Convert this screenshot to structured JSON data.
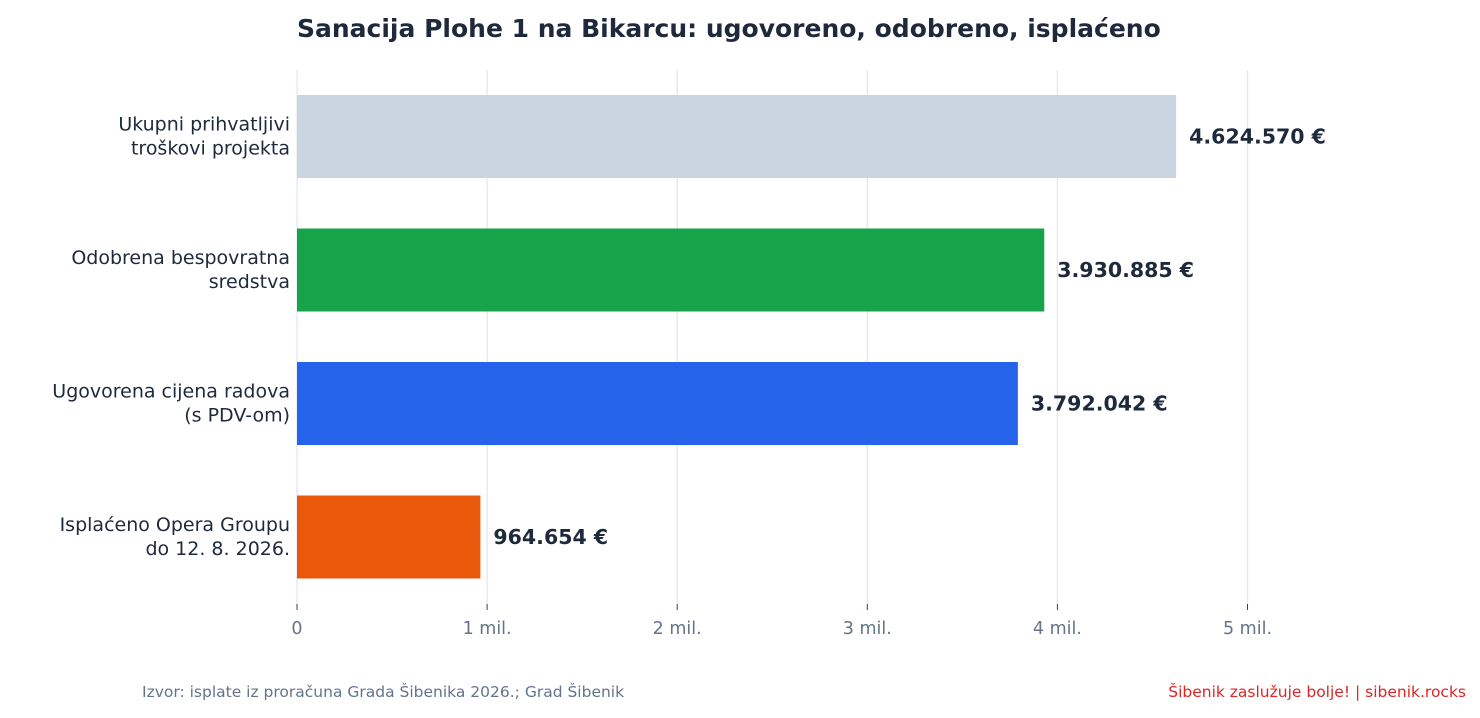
{
  "chart_data": {
    "type": "bar",
    "orientation": "horizontal",
    "title": "Sanacija Plohe 1 na Bikarcu: ugovoreno, odobreno, isplaćeno",
    "xlabel": "",
    "ylabel": "",
    "xlim": [
      0,
      5500000
    ],
    "grid": "vertical",
    "ticks": [
      {
        "value": 0,
        "label": "0"
      },
      {
        "value": 1000000,
        "label": "1 mil."
      },
      {
        "value": 2000000,
        "label": "2 mil."
      },
      {
        "value": 3000000,
        "label": "3 mil."
      },
      {
        "value": 4000000,
        "label": "4 mil."
      },
      {
        "value": 5000000,
        "label": "5 mil."
      }
    ],
    "bars": [
      {
        "label_lines": [
          "Ukupni prihvatljivi",
          "troškovi projekta"
        ],
        "value": 4624570,
        "value_label": "4.624.570 €",
        "color": "#cbd5e1"
      },
      {
        "label_lines": [
          "Odobrena bespovratna",
          "sredstva"
        ],
        "value": 3930885,
        "value_label": "3.930.885 €",
        "color": "#16a34a"
      },
      {
        "label_lines": [
          "Ugovorena cijena radova",
          "(s PDV-om)"
        ],
        "value": 3792042,
        "value_label": "3.792.042 €",
        "color": "#2563eb"
      },
      {
        "label_lines": [
          "Isplaćeno Opera Groupu",
          "do 12. 8. 2026."
        ],
        "value": 964654,
        "value_label": "964.654 €",
        "color": "#ea580c"
      }
    ]
  },
  "footer": {
    "source": "Izvor: isplate iz proračuna Grada Šibenika 2026.; Grad Šibenik",
    "credit": "Šibenik zaslužuje bolje!  |  sibenik.rocks"
  },
  "colors": {
    "title": "#1e293b",
    "category_label": "#1e293b",
    "value_label": "#1e293b",
    "tick_label": "#64748b",
    "grid": "#e2e8f0",
    "source": "#64748b",
    "credit": "#dc2626"
  }
}
